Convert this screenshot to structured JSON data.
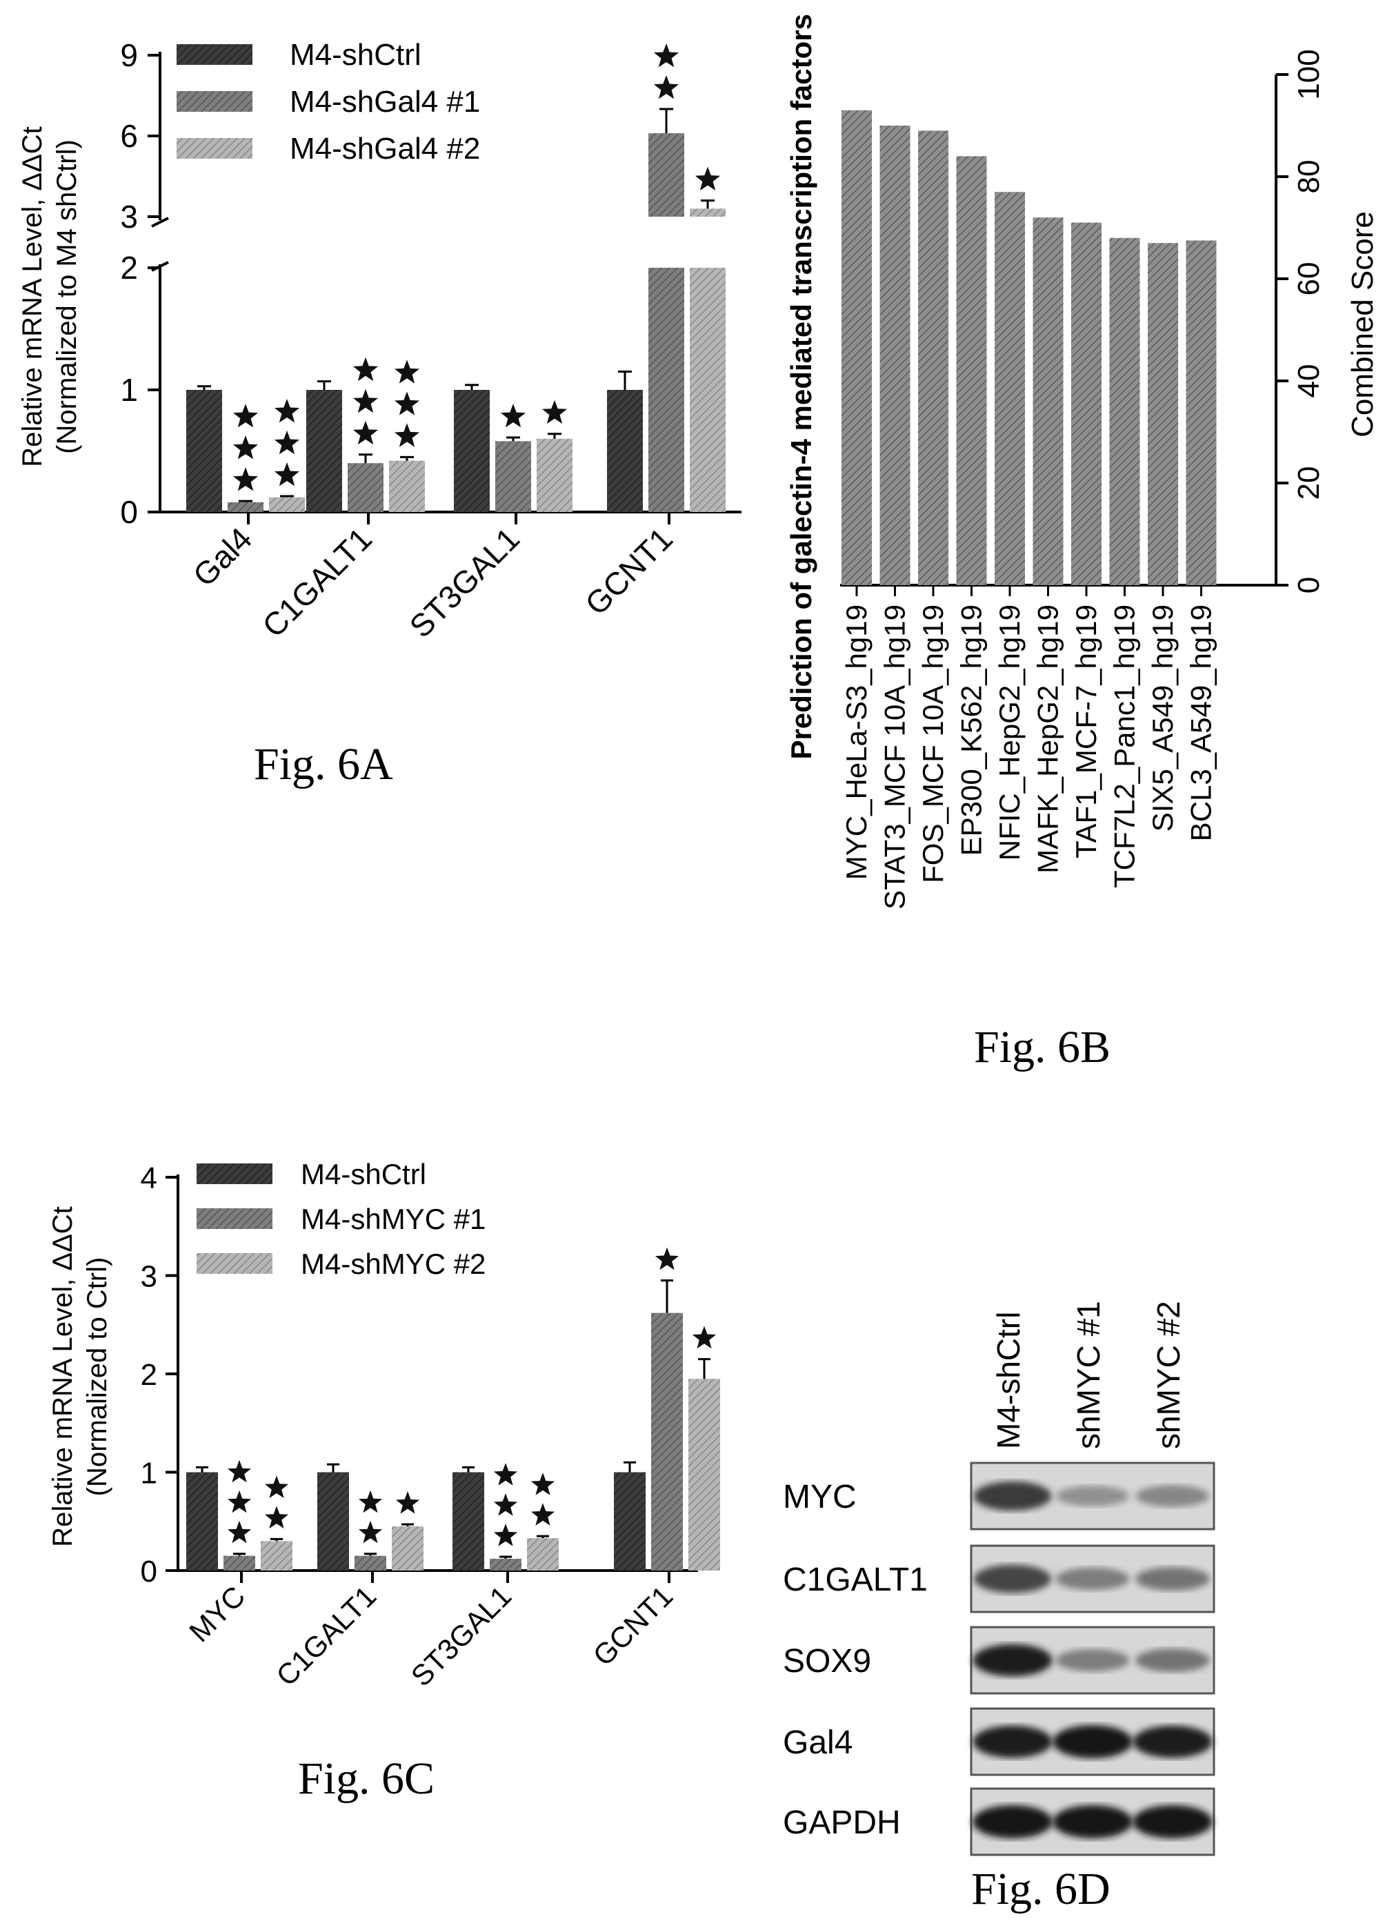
{
  "figures": {
    "6A": "Fig. 6A",
    "6B": "Fig. 6B",
    "6C": "Fig. 6C",
    "6D": "Fig. 6D"
  },
  "colors": {
    "series1": "#3c3c3c",
    "series2": "#7e7e7e",
    "series3": "#b6b6b6",
    "bar_b": "#8e8e8e"
  },
  "chart_data": [
    {
      "id": "6A",
      "type": "bar",
      "ylabel_line1": "Relative mRNA Level, ΔΔCt",
      "ylabel_line2": "(Normalized to M4 shCtrl)",
      "categories": [
        "Gal4",
        "C1GALT1",
        "ST3GAL1",
        "GCNT1"
      ],
      "series": [
        {
          "name": "M4-shCtrl",
          "values": [
            1.0,
            1.0,
            1.0,
            1.0
          ],
          "errors": [
            0.03,
            0.07,
            0.04,
            0.15
          ]
        },
        {
          "name": "M4-shGal4 #1",
          "values": [
            0.08,
            0.4,
            0.58,
            6.1
          ],
          "errors": [
            0.01,
            0.07,
            0.03,
            0.9
          ]
        },
        {
          "name": "M4-shGal4 #2",
          "values": [
            0.12,
            0.42,
            0.6,
            3.3
          ],
          "errors": [
            0.01,
            0.03,
            0.04,
            0.3
          ]
        }
      ],
      "stars": [
        [
          0,
          3,
          3
        ],
        [
          0,
          3,
          3
        ],
        [
          0,
          1,
          1
        ],
        [
          0,
          2,
          1
        ]
      ],
      "yticks": [
        "0",
        "1",
        "2",
        "3",
        "6",
        "9"
      ],
      "axis_break": [
        2,
        3
      ],
      "ylim": [
        0,
        9
      ]
    },
    {
      "id": "6B",
      "type": "bar",
      "orientation": "rotated",
      "title": "Prediction of galectin-4 mediated transcription factors",
      "ylabel": "Combined Score",
      "categories": [
        "MYC_HeLa-S3_hg19",
        "STAT3_MCF 10A_hg19",
        "FOS_MCF 10A_hg19",
        "EP300_K562_hg19",
        "NFIC_HepG2_hg19",
        "MAFK_HepG2_hg19",
        "TAF1_MCF-7_hg19",
        "TCF7L2_Panc1_hg19",
        "SIX5_A549_hg19",
        "BCL3_A549_hg19"
      ],
      "values": [
        93,
        90,
        89,
        84,
        77,
        72,
        71,
        68,
        67,
        67.5
      ],
      "yticks": [
        "0",
        "20",
        "40",
        "60",
        "80",
        "100"
      ],
      "ylim": [
        0,
        100
      ]
    },
    {
      "id": "6C",
      "type": "bar",
      "ylabel_line1": "Relative mRNA Level, ΔΔCt",
      "ylabel_line2": "(Normalized to Ctrl)",
      "categories": [
        "MYC",
        "C1GALT1",
        "ST3GAL1",
        "GCNT1"
      ],
      "series": [
        {
          "name": "M4-shCtrl",
          "values": [
            1.0,
            1.0,
            1.0,
            1.0
          ],
          "errors": [
            0.05,
            0.08,
            0.05,
            0.1
          ]
        },
        {
          "name": "M4-shMYC #1",
          "values": [
            0.15,
            0.15,
            0.12,
            2.62
          ],
          "errors": [
            0.02,
            0.02,
            0.02,
            0.33
          ]
        },
        {
          "name": "M4-shMYC #2",
          "values": [
            0.3,
            0.45,
            0.33,
            1.95
          ],
          "errors": [
            0.02,
            0.02,
            0.02,
            0.2
          ]
        }
      ],
      "stars": [
        [
          0,
          3,
          2
        ],
        [
          0,
          2,
          1
        ],
        [
          0,
          3,
          2
        ],
        [
          0,
          1,
          1
        ]
      ],
      "yticks": [
        "0",
        "1",
        "2",
        "3",
        "4"
      ],
      "ylim": [
        0,
        4
      ]
    }
  ],
  "blot": {
    "lanes": [
      "M4-shCtrl",
      "shMYC #1",
      "shMYC #2"
    ],
    "rows": [
      "MYC",
      "C1GALT1",
      "SOX9",
      "Gal4",
      "GAPDH"
    ],
    "intensity": [
      [
        0.8,
        0.35,
        0.4
      ],
      [
        0.75,
        0.45,
        0.5
      ],
      [
        0.95,
        0.45,
        0.5
      ],
      [
        0.95,
        1.0,
        0.95
      ],
      [
        1.0,
        1.0,
        1.0
      ]
    ]
  }
}
